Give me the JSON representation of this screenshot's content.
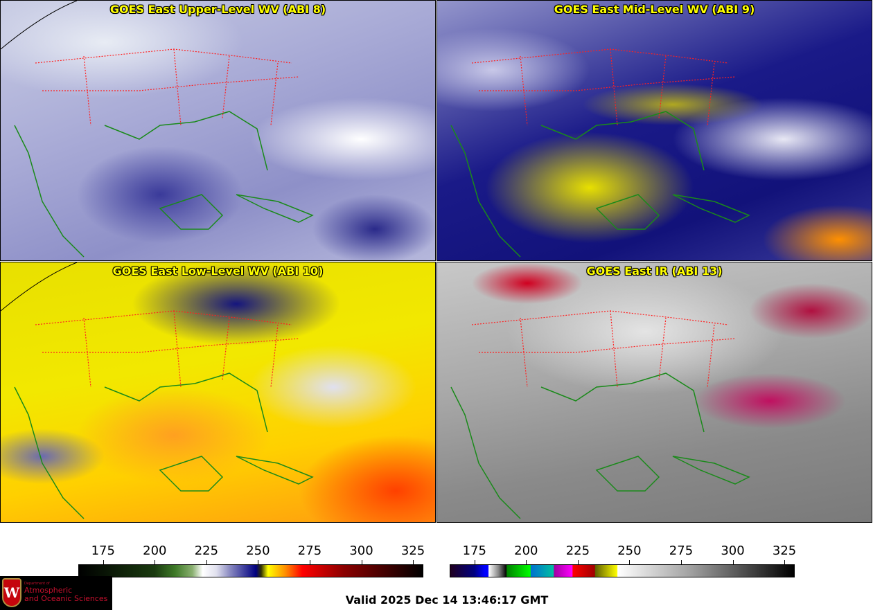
{
  "panels": [
    {
      "title": "GOES East Upper-Level WV (ABI 8)",
      "channel": "ABI 8"
    },
    {
      "title": "GOES East Mid-Level WV (ABI 9)",
      "channel": "ABI 9"
    },
    {
      "title": "GOES East Low-Level WV (ABI 10)",
      "channel": "ABI 10"
    },
    {
      "title": "GOES East IR (ABI 13)",
      "channel": "ABI 13"
    }
  ],
  "colorbars": {
    "wv": {
      "ticks": [
        "175",
        "200",
        "225",
        "250",
        "275",
        "300",
        "325"
      ],
      "range": [
        163,
        330
      ]
    },
    "ir": {
      "ticks": [
        "175",
        "200",
        "225",
        "250",
        "275",
        "300",
        "325"
      ],
      "range": [
        163,
        330
      ]
    }
  },
  "logo": {
    "line1": "Department of",
    "line2": "Atmospheric",
    "line3": "and Oceanic Sciences",
    "crest_letter": "W"
  },
  "valid_time": "Valid 2025 Dec 14 13:46:17 GMT",
  "colors": {
    "title_text": "#ffff00",
    "state_borders": "#ff2020",
    "coastlines": "#1a8a1a",
    "country_borders": "#8a5a10"
  }
}
